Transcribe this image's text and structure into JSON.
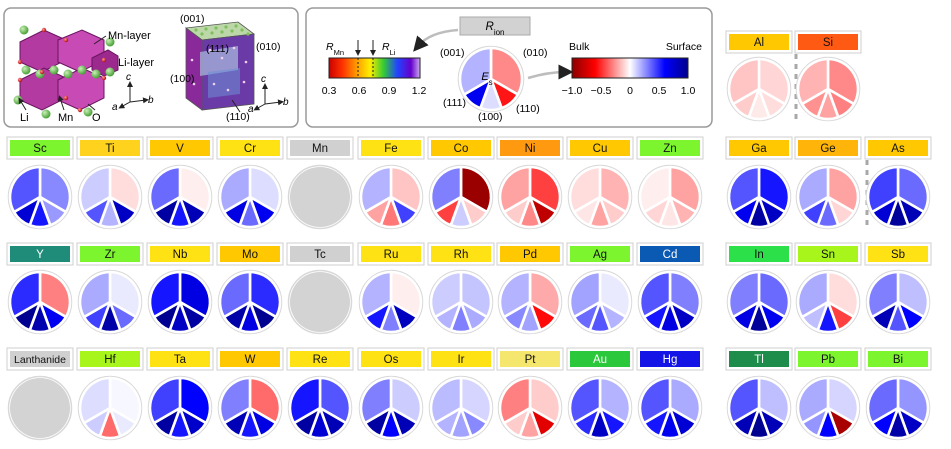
{
  "structure": {
    "mn_layer": "Mn-layer",
    "li_layer": "Li-layer",
    "atom_li": "Li",
    "atom_mn": "Mn",
    "atom_o": "O",
    "axis_a": "a",
    "axis_b": "b",
    "axis_c": "c"
  },
  "slab": {
    "face_001": "(001)",
    "face_111": "(111)",
    "face_010": "(010)",
    "face_100": "(100)",
    "face_110": "(110)"
  },
  "legend": {
    "r_ion": "R",
    "r_ion_sub": "ion",
    "r_mn": "R",
    "r_mn_sub": "Mn",
    "r_li": "R",
    "r_li_sub": "Li",
    "radius_ticks": [
      "0.3",
      "0.6",
      "0.9",
      "1.2"
    ],
    "pie_center": "E",
    "pie_center_sub": "s",
    "pie_faces": {
      "f001": "(001)",
      "f010": "(010)",
      "f111": "(111)",
      "f100": "(100)",
      "f110": "(110)"
    },
    "bulk": "Bulk",
    "surface": "Surface",
    "energy_ticks": [
      "−1.0",
      "−0.5",
      "0",
      "0.5",
      "1.0"
    ]
  },
  "elements": [
    {
      "symbol": "Al",
      "badge": "#FFC800",
      "slices": [
        0.1,
        0.08,
        0.05,
        0.12,
        0.14
      ]
    },
    {
      "symbol": "Si",
      "badge": "#FF5A14",
      "slices": [
        0.28,
        0.3,
        0.22,
        0.26,
        0.18
      ]
    },
    {
      "symbol": "Sc",
      "badge": "#7CF52E",
      "slices": [
        -0.28,
        -0.24,
        -0.55,
        -0.75,
        -0.4
      ]
    },
    {
      "symbol": "Ti",
      "badge": "#FFD21E",
      "slices": [
        0.08,
        -0.8,
        -0.18,
        -0.4,
        -0.12
      ]
    },
    {
      "symbol": "V",
      "badge": "#FFC800",
      "slices": [
        0.04,
        -0.85,
        -0.55,
        -0.92,
        -0.35
      ]
    },
    {
      "symbol": "Cr",
      "badge": "#FFE214",
      "slices": [
        -0.08,
        -0.65,
        -0.35,
        -0.7,
        -0.2
      ]
    },
    {
      "symbol": "Mn",
      "badge": "#D0D0D0",
      "slices": null
    },
    {
      "symbol": "Fe",
      "badge": "#FFE214",
      "slices": [
        0.14,
        -0.45,
        0.32,
        0.22,
        -0.18
      ]
    },
    {
      "symbol": "Co",
      "badge": "#FFC800",
      "slices": [
        0.95,
        0.12,
        -0.12,
        0.45,
        -0.3
      ]
    },
    {
      "symbol": "Ni",
      "badge": "#FF9A10",
      "slices": [
        0.45,
        0.82,
        0.28,
        0.12,
        0.22
      ]
    },
    {
      "symbol": "Cu",
      "badge": "#FFC800",
      "slices": [
        0.18,
        0.12,
        0.22,
        0.06,
        0.08
      ]
    },
    {
      "symbol": "Zn",
      "badge": "#7CF52E",
      "slices": [
        0.22,
        0.18,
        0.06,
        0.1,
        0.04
      ]
    },
    {
      "symbol": "Ga",
      "badge": "#FFC800",
      "slices": [
        -0.55,
        -0.8,
        -0.92,
        -0.65,
        -0.4
      ]
    },
    {
      "symbol": "Ge",
      "badge": "#FFB40A",
      "slices": [
        0.22,
        0.1,
        -0.35,
        -0.45,
        -0.2
      ]
    },
    {
      "symbol": "As",
      "badge": "#FFC800",
      "slices": [
        -0.35,
        -0.85,
        -0.95,
        -0.75,
        -0.45
      ]
    },
    {
      "symbol": "Y",
      "badge": "#1E8C78",
      "slices": [
        0.3,
        -0.65,
        -0.88,
        -0.98,
        -0.5
      ]
    },
    {
      "symbol": "Zr",
      "badge": "#7CF52E",
      "slices": [
        -0.05,
        -0.35,
        -0.9,
        -0.45,
        -0.2
      ]
    },
    {
      "symbol": "Nb",
      "badge": "#FFE214",
      "slices": [
        -0.7,
        -0.92,
        -0.8,
        -0.98,
        -0.55
      ]
    },
    {
      "symbol": "Mo",
      "badge": "#FFC800",
      "slices": [
        -0.5,
        -0.98,
        -0.7,
        -0.9,
        -0.35
      ]
    },
    {
      "symbol": "Tc",
      "badge": "#D0D0D0",
      "slices": null
    },
    {
      "symbol": "Ru",
      "badge": "#FFE214",
      "slices": [
        0.04,
        -0.82,
        -0.3,
        -0.55,
        -0.18
      ]
    },
    {
      "symbol": "Rh",
      "badge": "#FFE214",
      "slices": [
        -0.14,
        -0.2,
        -0.3,
        -0.18,
        -0.12
      ]
    },
    {
      "symbol": "Pd",
      "badge": "#FFC800",
      "slices": [
        0.2,
        0.58,
        -0.22,
        -0.28,
        -0.18
      ]
    },
    {
      "symbol": "Ag",
      "badge": "#7CF52E",
      "slices": [
        -0.05,
        -0.18,
        -0.4,
        -0.35,
        -0.22
      ]
    },
    {
      "symbol": "Cd",
      "badge": "#0A5AB4",
      "slices": [
        -0.3,
        -0.8,
        -0.7,
        -0.55,
        -0.4
      ]
    },
    {
      "symbol": "In",
      "badge": "#2CE04A",
      "slices": [
        -0.35,
        -0.65,
        -0.95,
        -0.7,
        -0.3
      ]
    },
    {
      "symbol": "Sn",
      "badge": "#A8F51C",
      "slices": [
        0.08,
        0.45,
        -0.55,
        -0.15,
        -0.2
      ]
    },
    {
      "symbol": "Sb",
      "badge": "#FFE214",
      "slices": [
        -0.15,
        -0.6,
        -0.4,
        -0.85,
        -0.3
      ]
    },
    {
      "symbol": "Lanthanide",
      "badge": "#D0D0D0",
      "slices": null
    },
    {
      "symbol": "Hf",
      "badge": "#A8F51C",
      "slices": [
        -0.02,
        -0.05,
        0.35,
        -0.12,
        -0.08
      ]
    },
    {
      "symbol": "Ta",
      "badge": "#FFE214",
      "slices": [
        -0.6,
        -0.78,
        -0.55,
        -0.92,
        -0.45
      ]
    },
    {
      "symbol": "W",
      "badge": "#FFC800",
      "slices": [
        0.35,
        -0.7,
        -0.55,
        -0.85,
        -0.3
      ]
    },
    {
      "symbol": "Re",
      "badge": "#FFE214",
      "slices": [
        -0.4,
        -0.85,
        -0.75,
        -0.92,
        -0.55
      ]
    },
    {
      "symbol": "Os",
      "badge": "#FFE214",
      "slices": [
        -0.12,
        -0.85,
        -0.6,
        -0.92,
        -0.3
      ]
    },
    {
      "symbol": "Ir",
      "badge": "#FFE214",
      "slices": [
        -0.1,
        -0.28,
        -0.22,
        -0.18,
        -0.16
      ]
    },
    {
      "symbol": "Pt",
      "badge": "#F5E66E",
      "slices": [
        0.12,
        0.7,
        0.22,
        0.12,
        0.3
      ]
    },
    {
      "symbol": "Au",
      "badge": "#2CC83C",
      "slices": [
        -0.18,
        -0.55,
        -0.8,
        -0.5,
        -0.4
      ]
    },
    {
      "symbol": "Hg",
      "badge": "#1414E6",
      "slices": [
        -0.2,
        -0.75,
        -0.65,
        -0.55,
        -0.4
      ]
    },
    {
      "symbol": "Tl",
      "badge": "#1E8C4A",
      "slices": [
        -0.15,
        -0.85,
        -0.98,
        -0.85,
        -0.4
      ]
    },
    {
      "symbol": "Pb",
      "badge": "#7CF52E",
      "slices": [
        -0.1,
        0.9,
        -0.6,
        -0.25,
        -0.2
      ]
    },
    {
      "symbol": "Bi",
      "badge": "#7CF52E",
      "slices": [
        -0.25,
        -0.8,
        -0.9,
        -0.6,
        -0.35
      ]
    }
  ],
  "colors": {
    "negative_end": "#00008B",
    "positive_end": "#8B0000",
    "missing": "#D3D3D3",
    "badge_neutral": "#D0D0D0"
  }
}
